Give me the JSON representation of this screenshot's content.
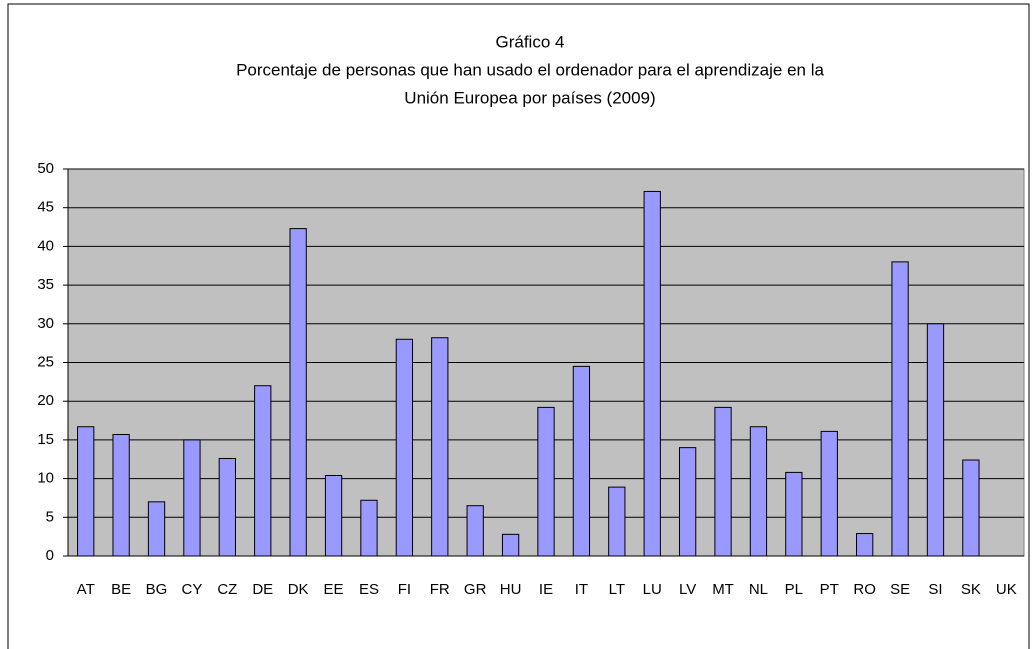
{
  "chart_data": {
    "type": "bar",
    "title": [
      "Gráfico 4",
      "Porcentaje de personas que han usado el ordenador para el aprendizaje en la",
      "Unión Europea por países (2009)"
    ],
    "categories": [
      "AT",
      "BE",
      "BG",
      "CY",
      "CZ",
      "DE",
      "DK",
      "EE",
      "ES",
      "FI",
      "FR",
      "GR",
      "HU",
      "IE",
      "IT",
      "LT",
      "LU",
      "LV",
      "MT",
      "NL",
      "PL",
      "PT",
      "RO",
      "SE",
      "SI",
      "SK",
      "UK"
    ],
    "values": [
      16.7,
      15.7,
      7,
      15,
      12.6,
      22,
      42.3,
      10.4,
      7.2,
      28,
      28.2,
      6.5,
      2.8,
      19.2,
      24.5,
      8.9,
      47.1,
      14,
      19.2,
      16.7,
      10.8,
      16.1,
      2.9,
      38,
      30,
      12.4,
      null
    ],
    "color": "#9999ff",
    "ylim": [
      0,
      50
    ],
    "yticks": [
      0,
      5,
      10,
      15,
      20,
      25,
      30,
      35,
      40,
      45,
      50
    ],
    "grid": true
  }
}
